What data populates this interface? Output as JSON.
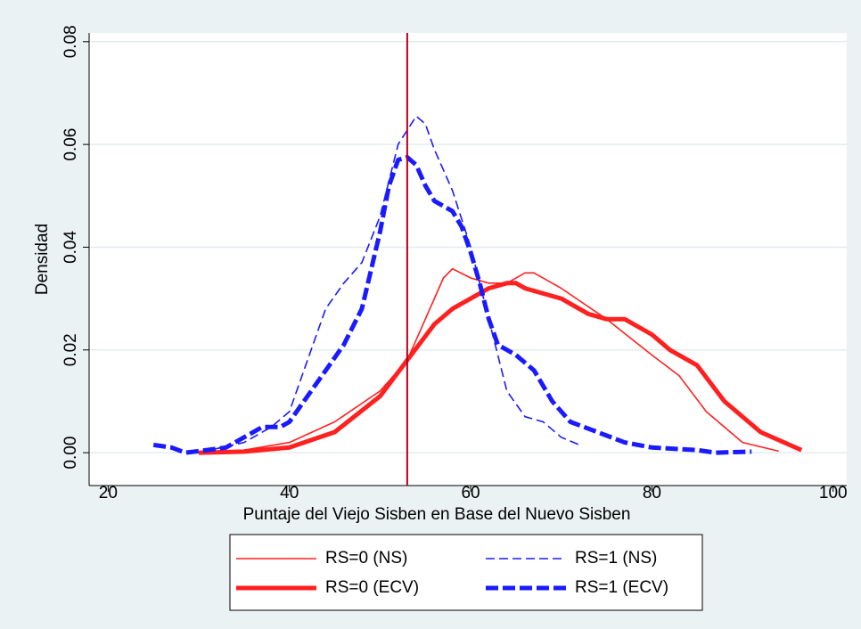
{
  "chart_data": {
    "type": "line",
    "x_label": "Puntaje del Viejo Sisben en Base del Nuevo Sisben",
    "y_label": "Densidad",
    "xlim": [
      17.9,
      101.5
    ],
    "ylim": [
      -0.0064,
      0.0817
    ],
    "xticks": [
      20,
      40,
      60,
      80,
      100
    ],
    "yticks": [
      {
        "value": 0,
        "label": "0.00"
      },
      {
        "value": 0.02,
        "label": "0.02"
      },
      {
        "value": 0.04,
        "label": "0.04"
      },
      {
        "value": 0.06,
        "label": "0.06"
      },
      {
        "value": 0.08,
        "label": "0.08"
      }
    ],
    "grid": true,
    "vline": 53,
    "vline_color": "#b00020",
    "series": [
      {
        "name": "RS=0 (NS)",
        "color": "#ff2020",
        "style": "solid",
        "weight": "thin",
        "x": [
          30,
          35,
          40,
          45,
          50,
          53,
          55,
          57,
          58,
          60,
          62,
          64,
          66,
          67,
          70,
          75,
          80,
          83,
          86,
          90,
          94
        ],
        "values": [
          0,
          0.0005,
          0.002,
          0.006,
          0.012,
          0.018,
          0.026,
          0.034,
          0.0358,
          0.034,
          0.033,
          0.033,
          0.035,
          0.035,
          0.032,
          0.026,
          0.019,
          0.015,
          0.008,
          0.002,
          0.0003
        ]
      },
      {
        "name": "RS=1 (NS)",
        "color": "#1a1aff",
        "style": "dashed",
        "weight": "thin",
        "x": [
          30,
          35,
          38,
          40,
          42,
          44,
          46,
          48,
          50,
          52,
          54,
          55,
          56,
          58,
          60,
          62,
          64,
          66,
          68,
          70,
          72
        ],
        "values": [
          0,
          0.002,
          0.005,
          0.008,
          0.018,
          0.028,
          0.033,
          0.037,
          0.046,
          0.06,
          0.0655,
          0.064,
          0.059,
          0.051,
          0.04,
          0.026,
          0.012,
          0.007,
          0.006,
          0.003,
          0.0015
        ]
      },
      {
        "name": "RS=0 (ECV)",
        "color": "#ff2020",
        "style": "solid",
        "weight": "thick",
        "x": [
          30,
          35,
          40,
          45,
          50,
          53,
          56,
          58,
          60,
          62,
          64,
          65,
          66,
          70,
          73,
          75,
          77,
          80,
          82,
          85,
          88,
          92,
          96.5
        ],
        "values": [
          0,
          0.0002,
          0.001,
          0.004,
          0.011,
          0.018,
          0.025,
          0.028,
          0.03,
          0.032,
          0.033,
          0.033,
          0.032,
          0.03,
          0.027,
          0.026,
          0.026,
          0.023,
          0.02,
          0.017,
          0.01,
          0.004,
          0.0005
        ]
      },
      {
        "name": "RS=1 (ECV)",
        "color": "#1a1aff",
        "style": "dashed",
        "weight": "thick",
        "x": [
          25,
          27,
          28.5,
          30,
          33,
          35,
          37,
          39,
          40,
          42,
          44,
          46,
          48,
          50,
          51,
          52,
          53,
          54,
          55,
          56,
          57,
          58,
          59,
          60,
          61,
          62,
          63,
          65,
          67,
          69,
          71,
          74,
          77,
          80,
          85,
          87,
          91
        ],
        "values": [
          0.0015,
          0.001,
          0,
          0.0003,
          0.001,
          0.003,
          0.005,
          0.005,
          0.006,
          0.011,
          0.016,
          0.021,
          0.028,
          0.043,
          0.052,
          0.057,
          0.0575,
          0.056,
          0.052,
          0.049,
          0.048,
          0.047,
          0.044,
          0.039,
          0.033,
          0.026,
          0.021,
          0.019,
          0.016,
          0.01,
          0.006,
          0.004,
          0.002,
          0.001,
          0.0005,
          0,
          0.0002
        ]
      }
    ]
  }
}
